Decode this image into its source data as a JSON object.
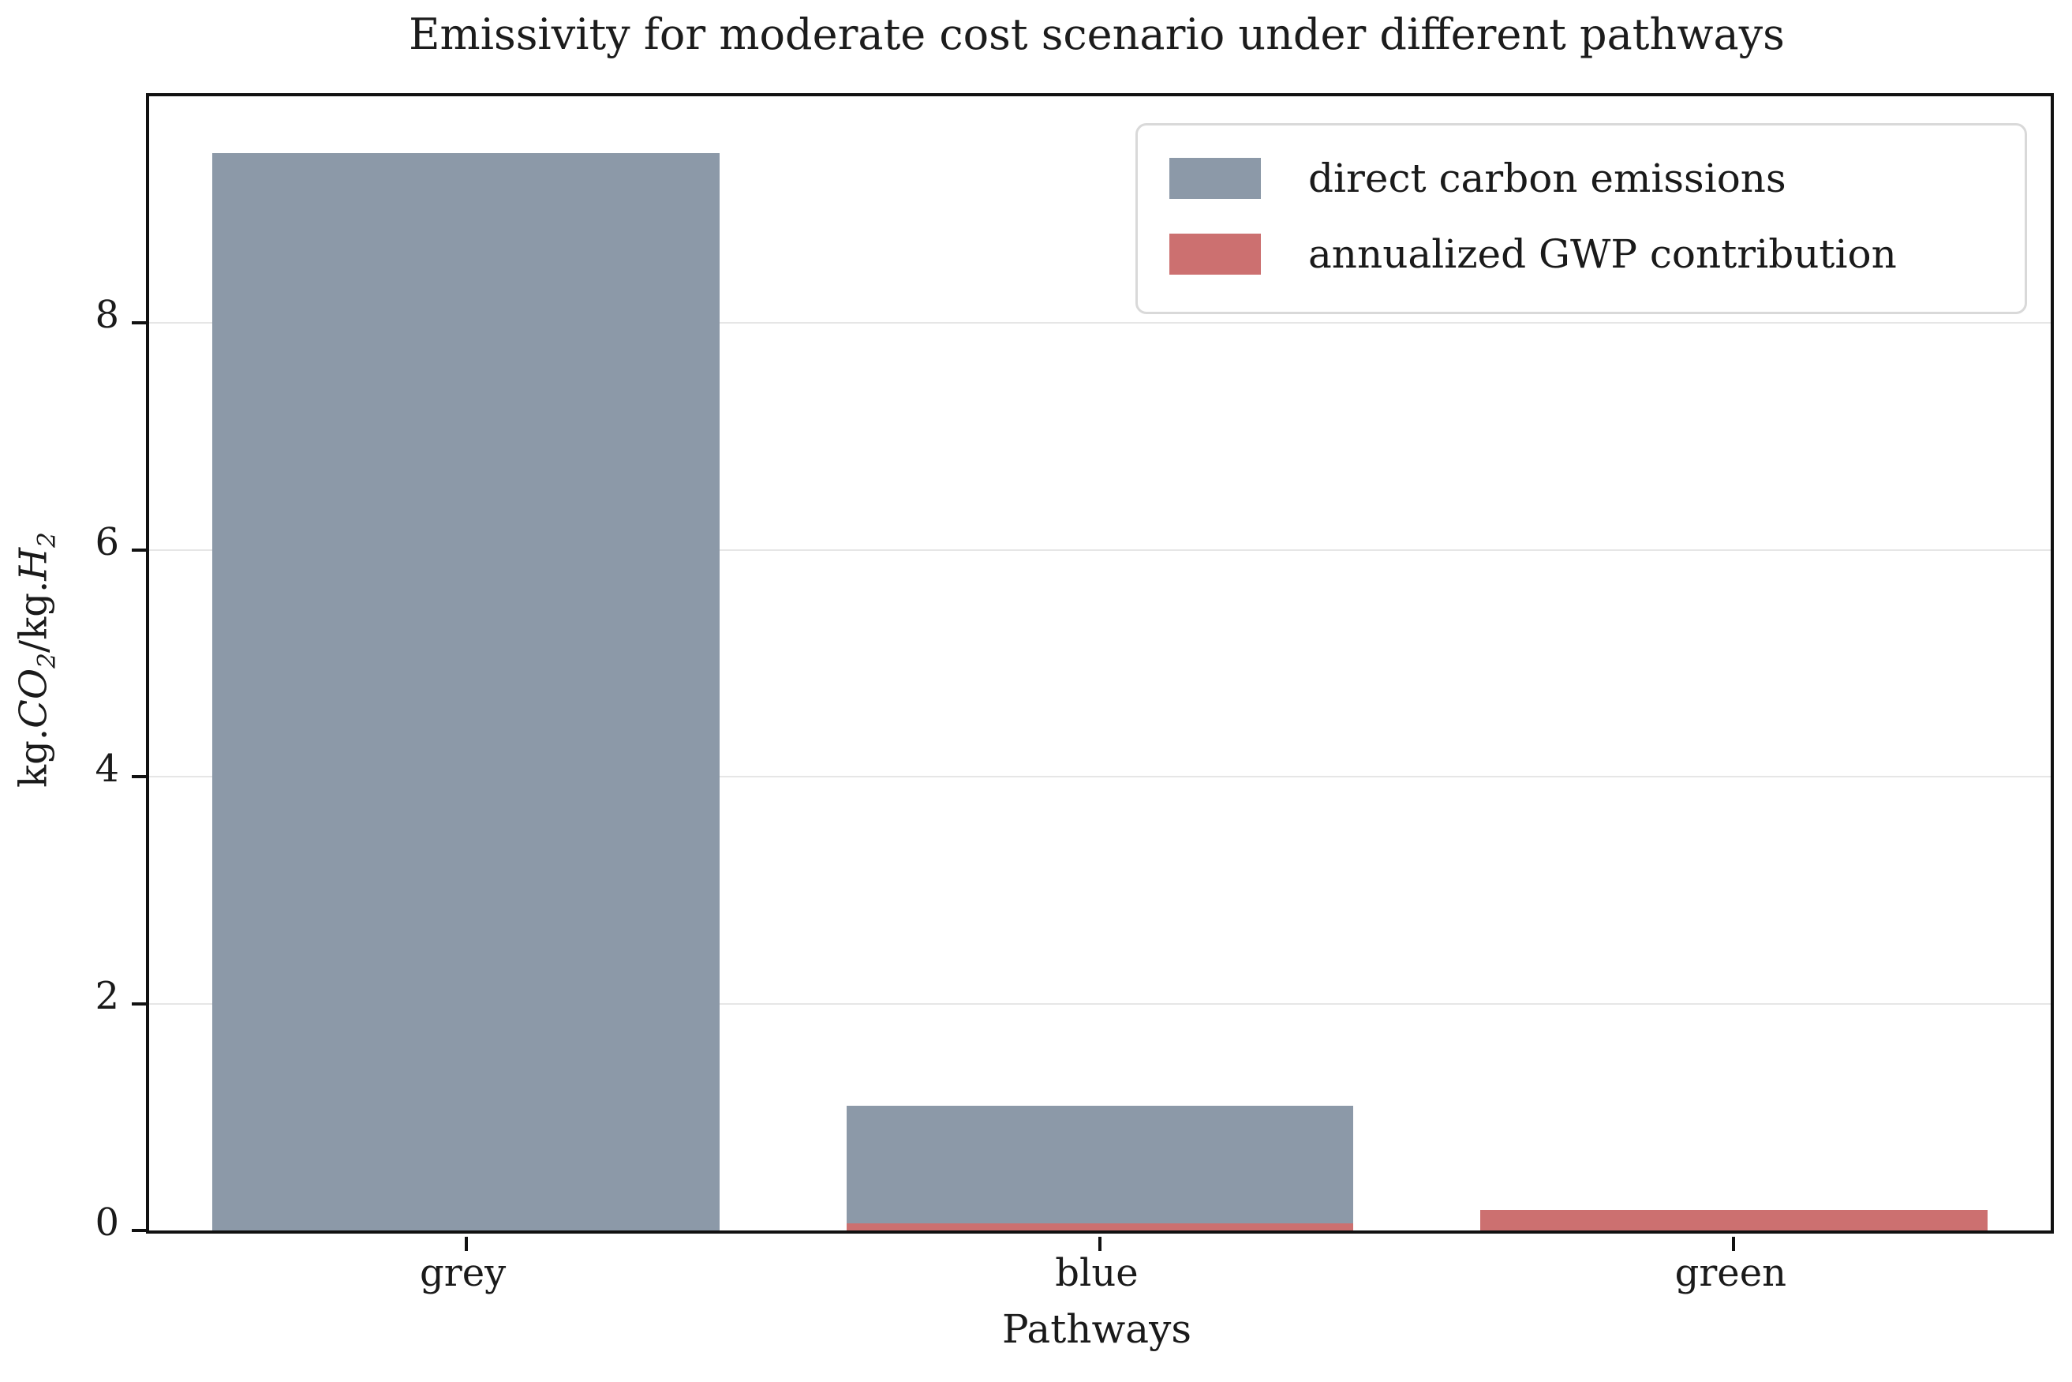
{
  "chart_data": {
    "type": "bar",
    "title": "Emissivity for moderate cost scenario under different pathways",
    "xlabel": "Pathways",
    "ylabel": "kg.CO₂/kg.H₂",
    "categories": [
      "grey",
      "blue",
      "green"
    ],
    "series": [
      {
        "name": "direct carbon emissions",
        "color": "#8c99a8",
        "values": [
          9.5,
          1.1,
          0
        ]
      },
      {
        "name": "annualized GWP contribution",
        "color": "#cc7070",
        "values": [
          0,
          0.06,
          0.18
        ]
      }
    ],
    "bar_mode": "overlay",
    "bar_width_fraction": 0.2667,
    "ylim": [
      0,
      10
    ],
    "yticks": [
      0,
      2,
      4,
      6,
      8
    ],
    "grid": true,
    "grid_color": "#e6e6e6",
    "legend_position": "upper right",
    "text_color": "#1a1a1a",
    "background_color": "#ffffff"
  }
}
